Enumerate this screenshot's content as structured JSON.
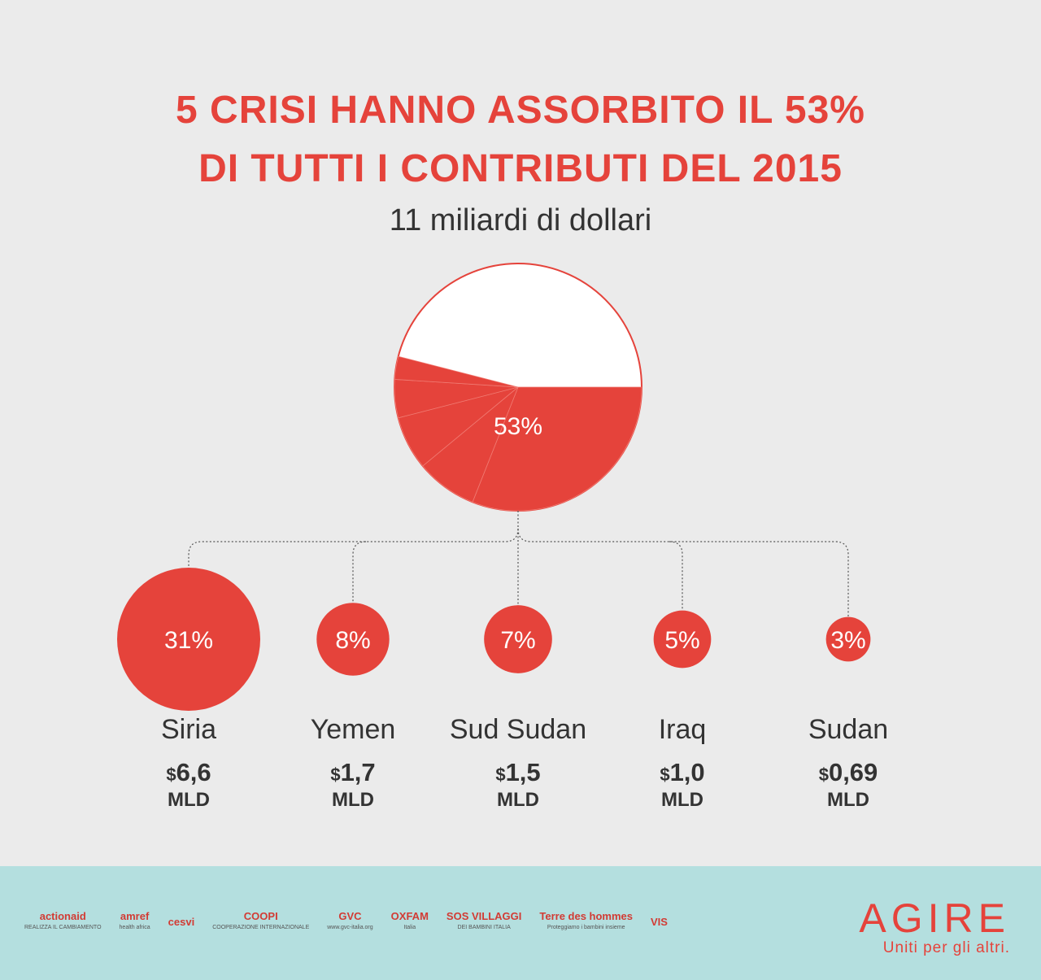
{
  "header": {
    "title_line1": "5 CRISI HANNO ASSORBITO IL 53%",
    "title_line2": "DI TUTTI I CONTRIBUTI DEL 2015",
    "subtitle": "11 miliardi di dollari"
  },
  "chart_data": {
    "type": "pie",
    "total_label": "53%",
    "share_total": 53,
    "slices": [
      {
        "name": "Siria",
        "percent": 31,
        "percent_label": "31%",
        "amount": 6.6,
        "amount_label": "6,6"
      },
      {
        "name": "Yemen",
        "percent": 8,
        "percent_label": "8%",
        "amount": 1.7,
        "amount_label": "1,7"
      },
      {
        "name": "Sud Sudan",
        "percent": 7,
        "percent_label": "7%",
        "amount": 1.5,
        "amount_label": "1,5"
      },
      {
        "name": "Iraq",
        "percent": 5,
        "percent_label": "5%",
        "amount": 1.0,
        "amount_label": "1,0"
      },
      {
        "name": "Sudan",
        "percent": 3,
        "percent_label": "3%",
        "amount": 0.69,
        "amount_label": "0,69"
      }
    ],
    "currency": "$",
    "unit": "MLD",
    "colors": {
      "accent": "#e5433b",
      "outline": "#e5433b",
      "connector": "#555555"
    }
  },
  "footer": {
    "partners": [
      {
        "name": "actionaid",
        "tag": "REALIZZA IL CAMBIAMENTO"
      },
      {
        "name": "amref",
        "tag": "health africa"
      },
      {
        "name": "cesvi",
        "tag": ""
      },
      {
        "name": "COOPI",
        "tag": "COOPERAZIONE INTERNAZIONALE"
      },
      {
        "name": "GVC",
        "tag": "www.gvc-italia.org"
      },
      {
        "name": "OXFAM",
        "tag": "Italia"
      },
      {
        "name": "SOS VILLAGGI",
        "tag": "DEI BAMBINI ITALIA"
      },
      {
        "name": "Terre des hommes",
        "tag": "Proteggiamo i bambini insieme"
      },
      {
        "name": "VIS",
        "tag": ""
      }
    ],
    "brand": "AGIRE",
    "tagline": "Uniti per gli altri.",
    "background": "#b4dfdf"
  }
}
